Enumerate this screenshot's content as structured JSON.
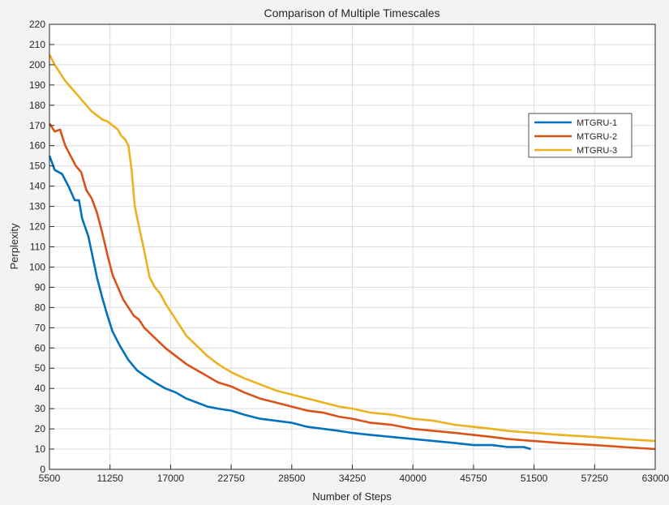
{
  "chart_data": {
    "type": "line",
    "title": "Comparison of Multiple Timescales",
    "xlabel": "Number of Steps",
    "ylabel": "Perplexity",
    "xlim": [
      5500,
      63000
    ],
    "ylim": [
      0,
      220
    ],
    "xticks": [
      5500,
      11250,
      17000,
      22750,
      28500,
      34250,
      40000,
      45750,
      51500,
      57250,
      63000
    ],
    "xtick_labels": [
      "5500",
      "11250",
      "17000",
      "22750",
      "28500",
      "34250",
      "40000",
      "45750",
      "51500",
      "57250",
      "63000"
    ],
    "yticks": [
      0,
      10,
      20,
      30,
      40,
      50,
      60,
      70,
      80,
      90,
      100,
      110,
      120,
      130,
      140,
      150,
      160,
      170,
      180,
      190,
      200,
      210,
      220
    ],
    "grid": true,
    "legend_position": "top-right",
    "series": [
      {
        "name": "MTGRU-1",
        "color": "#0072BD",
        "x": [
          5500,
          6000,
          6700,
          7300,
          7900,
          8300,
          8600,
          9200,
          9600,
          10000,
          10500,
          11000,
          11500,
          12200,
          13000,
          13800,
          14600,
          15500,
          16500,
          17500,
          18500,
          19500,
          20500,
          21500,
          22750,
          24000,
          25500,
          27000,
          28500,
          30000,
          31500,
          33000,
          34250,
          36000,
          38000,
          40000,
          42000,
          44000,
          45750,
          47500,
          49000,
          50500,
          51200
        ],
        "y": [
          155,
          148,
          146,
          140,
          133,
          133,
          124,
          115,
          105,
          95,
          85,
          76,
          68,
          61,
          54,
          49,
          46,
          43,
          40,
          38,
          35,
          33,
          31,
          30,
          29,
          27,
          25,
          24,
          23,
          21,
          20,
          19,
          18,
          17,
          16,
          15,
          14,
          13,
          12,
          12,
          11,
          11,
          10
        ]
      },
      {
        "name": "MTGRU-2",
        "color": "#D95319",
        "x": [
          5500,
          6000,
          6500,
          7000,
          7500,
          8000,
          8500,
          9000,
          9500,
          10000,
          10500,
          11000,
          11500,
          12000,
          12500,
          13000,
          13500,
          14000,
          14500,
          15500,
          16500,
          17500,
          18500,
          19500,
          20500,
          21500,
          22750,
          24000,
          25500,
          27000,
          28500,
          30000,
          31500,
          33000,
          34250,
          36000,
          38000,
          40000,
          42000,
          44000,
          45750,
          47500,
          49000,
          51500,
          54000,
          57250,
          60000,
          63000
        ],
        "y": [
          171,
          167,
          168,
          160,
          155,
          150,
          147,
          138,
          134,
          127,
          117,
          106,
          96,
          90,
          84,
          80,
          76,
          74,
          70,
          65,
          60,
          56,
          52,
          49,
          46,
          43,
          41,
          38,
          35,
          33,
          31,
          29,
          28,
          26,
          25,
          23,
          22,
          20,
          19,
          18,
          17,
          16,
          15,
          14,
          13,
          12,
          11,
          10
        ]
      },
      {
        "name": "MTGRU-3",
        "color": "#EDB120",
        "x": [
          5500,
          6000,
          6500,
          7000,
          7500,
          8000,
          8500,
          9000,
          9500,
          10000,
          10500,
          11000,
          11500,
          12000,
          12300,
          12700,
          13000,
          13300,
          13600,
          14000,
          14500,
          15000,
          15500,
          16000,
          16500,
          17000,
          17500,
          18000,
          18500,
          19500,
          20500,
          21500,
          22750,
          24000,
          25500,
          27000,
          28500,
          30000,
          31500,
          33000,
          34250,
          36000,
          38000,
          40000,
          42000,
          44000,
          45750,
          47500,
          49000,
          51500,
          54000,
          57250,
          60000,
          63000
        ],
        "y": [
          205,
          200,
          196,
          192,
          189,
          186,
          183,
          180,
          177,
          175,
          173,
          172,
          170,
          168,
          165,
          163,
          160,
          148,
          130,
          120,
          108,
          95,
          90,
          87,
          82,
          78,
          74,
          70,
          66,
          61,
          56,
          52,
          48,
          45,
          42,
          39,
          37,
          35,
          33,
          31,
          30,
          28,
          27,
          25,
          24,
          22,
          21,
          20,
          19,
          18,
          17,
          16,
          15,
          14
        ]
      }
    ]
  }
}
